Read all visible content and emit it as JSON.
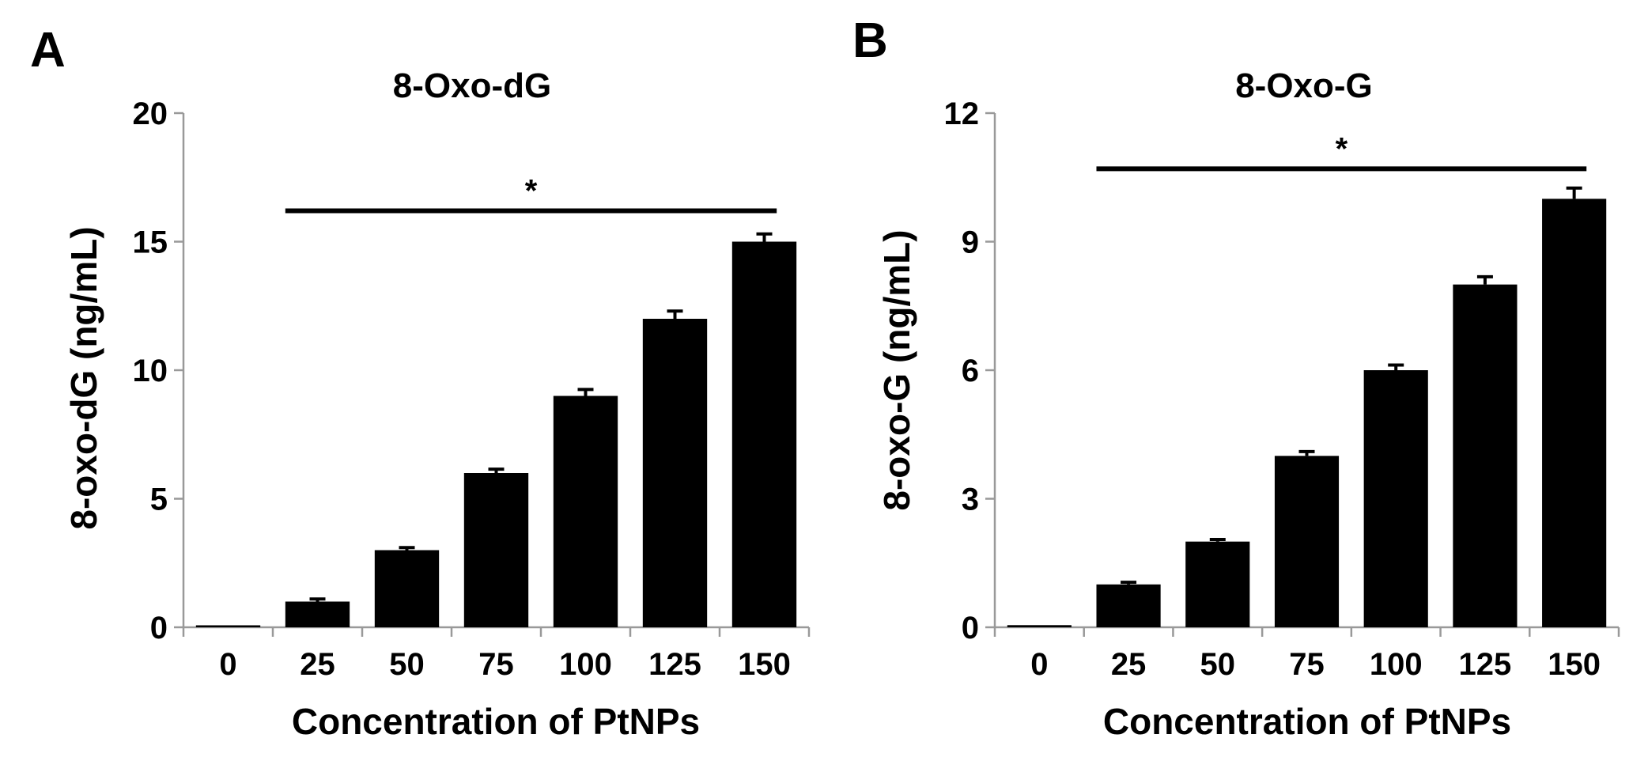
{
  "figure": {
    "panels": [
      {
        "letter": "A"
      },
      {
        "letter": "B"
      }
    ]
  },
  "chart_data": [
    {
      "type": "bar",
      "title": "8-Oxo-dG",
      "xlabel": "Concentration of PtNPs",
      "ylabel": "8-oxo-dG (ng/mL)",
      "categories": [
        "0",
        "25",
        "50",
        "75",
        "100",
        "125",
        "150"
      ],
      "values": [
        0.05,
        1.0,
        3.0,
        6.0,
        9.0,
        12.0,
        15.0
      ],
      "errors": [
        0.02,
        0.1,
        0.1,
        0.15,
        0.25,
        0.3,
        0.3
      ],
      "ylim": [
        0,
        20
      ],
      "yticks": [
        0,
        5,
        10,
        15,
        20
      ],
      "significance": {
        "label": "*",
        "from": "25",
        "to": "150",
        "y": 16.2
      },
      "grid": false
    },
    {
      "type": "bar",
      "title": "8-Oxo-G",
      "xlabel": "Concentration of PtNPs",
      "ylabel": "8-oxo-G (ng/mL)",
      "categories": [
        "0",
        "25",
        "50",
        "75",
        "100",
        "125",
        "150"
      ],
      "values": [
        0.05,
        1.0,
        2.0,
        4.0,
        6.0,
        8.0,
        10.0
      ],
      "errors": [
        0.02,
        0.05,
        0.05,
        0.1,
        0.12,
        0.18,
        0.25
      ],
      "ylim": [
        0,
        12
      ],
      "yticks": [
        0,
        3,
        6,
        9,
        12
      ],
      "significance": {
        "label": "*",
        "from": "25",
        "to": "150",
        "y": 10.7
      },
      "grid": false
    }
  ]
}
